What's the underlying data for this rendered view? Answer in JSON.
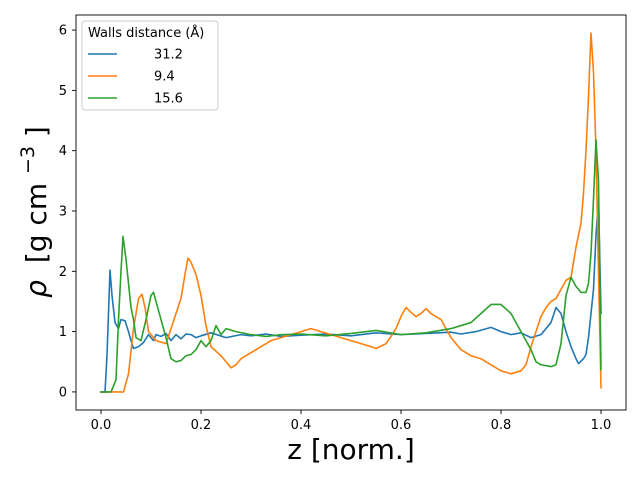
{
  "chart_data": {
    "type": "line",
    "xlabel": "z [norm.]",
    "ylabel_symbol": "ρ",
    "ylabel_units": "[g cm",
    "ylabel_exp": "−3",
    "ylabel_close": "]",
    "xlim": [
      -0.05,
      1.05
    ],
    "ylim": [
      -0.3,
      6.25
    ],
    "xticks": [
      0.0,
      0.2,
      0.4,
      0.6,
      0.8,
      1.0
    ],
    "xtick_labels": [
      "0.0",
      "0.2",
      "0.4",
      "0.6",
      "0.8",
      "1.0"
    ],
    "yticks": [
      0,
      1,
      2,
      3,
      4,
      5,
      6
    ],
    "ytick_labels": [
      "0",
      "1",
      "2",
      "3",
      "4",
      "5",
      "6"
    ],
    "grid": false,
    "legend": {
      "title": "Walls distance (Å)",
      "placement": "top-left"
    },
    "series": [
      {
        "name": "31.2",
        "color": "#1f77b4",
        "points": [
          [
            0.0,
            0
          ],
          [
            0.008,
            0
          ],
          [
            0.012,
            0.6
          ],
          [
            0.018,
            2.02
          ],
          [
            0.022,
            1.6
          ],
          [
            0.028,
            1.15
          ],
          [
            0.035,
            1.05
          ],
          [
            0.04,
            1.2
          ],
          [
            0.048,
            1.18
          ],
          [
            0.055,
            1.0
          ],
          [
            0.06,
            0.85
          ],
          [
            0.065,
            0.72
          ],
          [
            0.075,
            0.75
          ],
          [
            0.085,
            0.82
          ],
          [
            0.095,
            0.95
          ],
          [
            0.105,
            0.85
          ],
          [
            0.11,
            0.95
          ],
          [
            0.12,
            0.92
          ],
          [
            0.13,
            0.97
          ],
          [
            0.14,
            0.85
          ],
          [
            0.15,
            0.95
          ],
          [
            0.16,
            0.88
          ],
          [
            0.17,
            0.96
          ],
          [
            0.18,
            0.95
          ],
          [
            0.19,
            0.9
          ],
          [
            0.2,
            0.93
          ],
          [
            0.22,
            0.98
          ],
          [
            0.25,
            0.9
          ],
          [
            0.28,
            0.95
          ],
          [
            0.3,
            0.93
          ],
          [
            0.33,
            0.96
          ],
          [
            0.36,
            0.92
          ],
          [
            0.4,
            0.94
          ],
          [
            0.45,
            0.96
          ],
          [
            0.5,
            0.93
          ],
          [
            0.55,
            0.98
          ],
          [
            0.6,
            0.95
          ],
          [
            0.65,
            0.97
          ],
          [
            0.7,
            0.99
          ],
          [
            0.72,
            0.96
          ],
          [
            0.75,
            1.0
          ],
          [
            0.78,
            1.07
          ],
          [
            0.8,
            1.0
          ],
          [
            0.82,
            0.95
          ],
          [
            0.84,
            0.98
          ],
          [
            0.86,
            0.9
          ],
          [
            0.88,
            0.95
          ],
          [
            0.9,
            1.15
          ],
          [
            0.91,
            1.4
          ],
          [
            0.92,
            1.3
          ],
          [
            0.93,
            1.0
          ],
          [
            0.94,
            0.75
          ],
          [
            0.95,
            0.55
          ],
          [
            0.955,
            0.47
          ],
          [
            0.965,
            0.55
          ],
          [
            0.97,
            0.62
          ],
          [
            0.975,
            0.9
          ],
          [
            0.98,
            1.3
          ],
          [
            0.985,
            1.7
          ],
          [
            0.99,
            2.6
          ],
          [
            0.995,
            3.2
          ],
          [
            1.0,
            1.3
          ]
        ]
      },
      {
        "name": "9.4",
        "color": "#ff7f0e",
        "points": [
          [
            0.0,
            0
          ],
          [
            0.025,
            0
          ],
          [
            0.035,
            0
          ],
          [
            0.045,
            0
          ],
          [
            0.055,
            0.3
          ],
          [
            0.065,
            1.05
          ],
          [
            0.075,
            1.55
          ],
          [
            0.082,
            1.62
          ],
          [
            0.088,
            1.4
          ],
          [
            0.095,
            1.0
          ],
          [
            0.11,
            0.85
          ],
          [
            0.13,
            0.8
          ],
          [
            0.14,
            1.05
          ],
          [
            0.15,
            1.3
          ],
          [
            0.16,
            1.55
          ],
          [
            0.168,
            1.95
          ],
          [
            0.174,
            2.22
          ],
          [
            0.18,
            2.15
          ],
          [
            0.19,
            1.95
          ],
          [
            0.2,
            1.6
          ],
          [
            0.21,
            1.1
          ],
          [
            0.22,
            0.75
          ],
          [
            0.24,
            0.6
          ],
          [
            0.25,
            0.5
          ],
          [
            0.26,
            0.4
          ],
          [
            0.27,
            0.45
          ],
          [
            0.28,
            0.55
          ],
          [
            0.3,
            0.65
          ],
          [
            0.32,
            0.75
          ],
          [
            0.34,
            0.85
          ],
          [
            0.36,
            0.9
          ],
          [
            0.38,
            0.95
          ],
          [
            0.4,
            1.0
          ],
          [
            0.42,
            1.05
          ],
          [
            0.44,
            1.0
          ],
          [
            0.46,
            0.95
          ],
          [
            0.48,
            0.9
          ],
          [
            0.5,
            0.85
          ],
          [
            0.52,
            0.8
          ],
          [
            0.54,
            0.75
          ],
          [
            0.55,
            0.72
          ],
          [
            0.57,
            0.8
          ],
          [
            0.58,
            0.92
          ],
          [
            0.59,
            1.05
          ],
          [
            0.6,
            1.25
          ],
          [
            0.61,
            1.4
          ],
          [
            0.62,
            1.32
          ],
          [
            0.63,
            1.25
          ],
          [
            0.64,
            1.3
          ],
          [
            0.65,
            1.38
          ],
          [
            0.66,
            1.3
          ],
          [
            0.67,
            1.25
          ],
          [
            0.68,
            1.2
          ],
          [
            0.69,
            1.05
          ],
          [
            0.7,
            0.9
          ],
          [
            0.72,
            0.7
          ],
          [
            0.74,
            0.6
          ],
          [
            0.76,
            0.55
          ],
          [
            0.78,
            0.45
          ],
          [
            0.8,
            0.35
          ],
          [
            0.82,
            0.3
          ],
          [
            0.84,
            0.35
          ],
          [
            0.85,
            0.45
          ],
          [
            0.86,
            0.75
          ],
          [
            0.87,
            1.0
          ],
          [
            0.88,
            1.25
          ],
          [
            0.89,
            1.4
          ],
          [
            0.9,
            1.5
          ],
          [
            0.91,
            1.55
          ],
          [
            0.92,
            1.7
          ],
          [
            0.93,
            1.85
          ],
          [
            0.94,
            1.9
          ],
          [
            0.95,
            2.4
          ],
          [
            0.96,
            2.8
          ],
          [
            0.965,
            3.3
          ],
          [
            0.97,
            4.0
          ],
          [
            0.975,
            4.9
          ],
          [
            0.98,
            5.95
          ],
          [
            0.985,
            5.3
          ],
          [
            0.99,
            4.0
          ],
          [
            0.995,
            2.0
          ],
          [
            1.0,
            0.07
          ]
        ]
      },
      {
        "name": "15.6",
        "color": "#2ca02c",
        "points": [
          [
            0.0,
            0
          ],
          [
            0.02,
            0
          ],
          [
            0.03,
            0.2
          ],
          [
            0.035,
            1.2
          ],
          [
            0.04,
            2.0
          ],
          [
            0.044,
            2.58
          ],
          [
            0.05,
            2.2
          ],
          [
            0.055,
            1.8
          ],
          [
            0.06,
            1.4
          ],
          [
            0.065,
            1.2
          ],
          [
            0.07,
            0.9
          ],
          [
            0.08,
            0.85
          ],
          [
            0.09,
            1.2
          ],
          [
            0.1,
            1.6
          ],
          [
            0.105,
            1.65
          ],
          [
            0.11,
            1.5
          ],
          [
            0.12,
            1.2
          ],
          [
            0.13,
            0.9
          ],
          [
            0.14,
            0.55
          ],
          [
            0.15,
            0.5
          ],
          [
            0.16,
            0.52
          ],
          [
            0.17,
            0.6
          ],
          [
            0.18,
            0.62
          ],
          [
            0.19,
            0.7
          ],
          [
            0.2,
            0.85
          ],
          [
            0.21,
            0.75
          ],
          [
            0.22,
            0.85
          ],
          [
            0.23,
            1.1
          ],
          [
            0.24,
            0.95
          ],
          [
            0.25,
            1.05
          ],
          [
            0.27,
            1.0
          ],
          [
            0.3,
            0.95
          ],
          [
            0.33,
            0.92
          ],
          [
            0.36,
            0.95
          ],
          [
            0.4,
            0.96
          ],
          [
            0.45,
            0.93
          ],
          [
            0.5,
            0.97
          ],
          [
            0.55,
            1.02
          ],
          [
            0.6,
            0.95
          ],
          [
            0.65,
            0.98
          ],
          [
            0.7,
            1.05
          ],
          [
            0.72,
            1.1
          ],
          [
            0.74,
            1.15
          ],
          [
            0.76,
            1.3
          ],
          [
            0.78,
            1.45
          ],
          [
            0.8,
            1.45
          ],
          [
            0.82,
            1.3
          ],
          [
            0.84,
            1.0
          ],
          [
            0.86,
            0.7
          ],
          [
            0.87,
            0.5
          ],
          [
            0.88,
            0.45
          ],
          [
            0.9,
            0.42
          ],
          [
            0.91,
            0.45
          ],
          [
            0.92,
            0.8
          ],
          [
            0.93,
            1.6
          ],
          [
            0.94,
            1.9
          ],
          [
            0.95,
            1.75
          ],
          [
            0.96,
            1.65
          ],
          [
            0.97,
            1.65
          ],
          [
            0.975,
            1.8
          ],
          [
            0.98,
            2.3
          ],
          [
            0.985,
            3.2
          ],
          [
            0.99,
            4.18
          ],
          [
            0.995,
            3.5
          ],
          [
            1.0,
            0.37
          ]
        ]
      }
    ]
  }
}
